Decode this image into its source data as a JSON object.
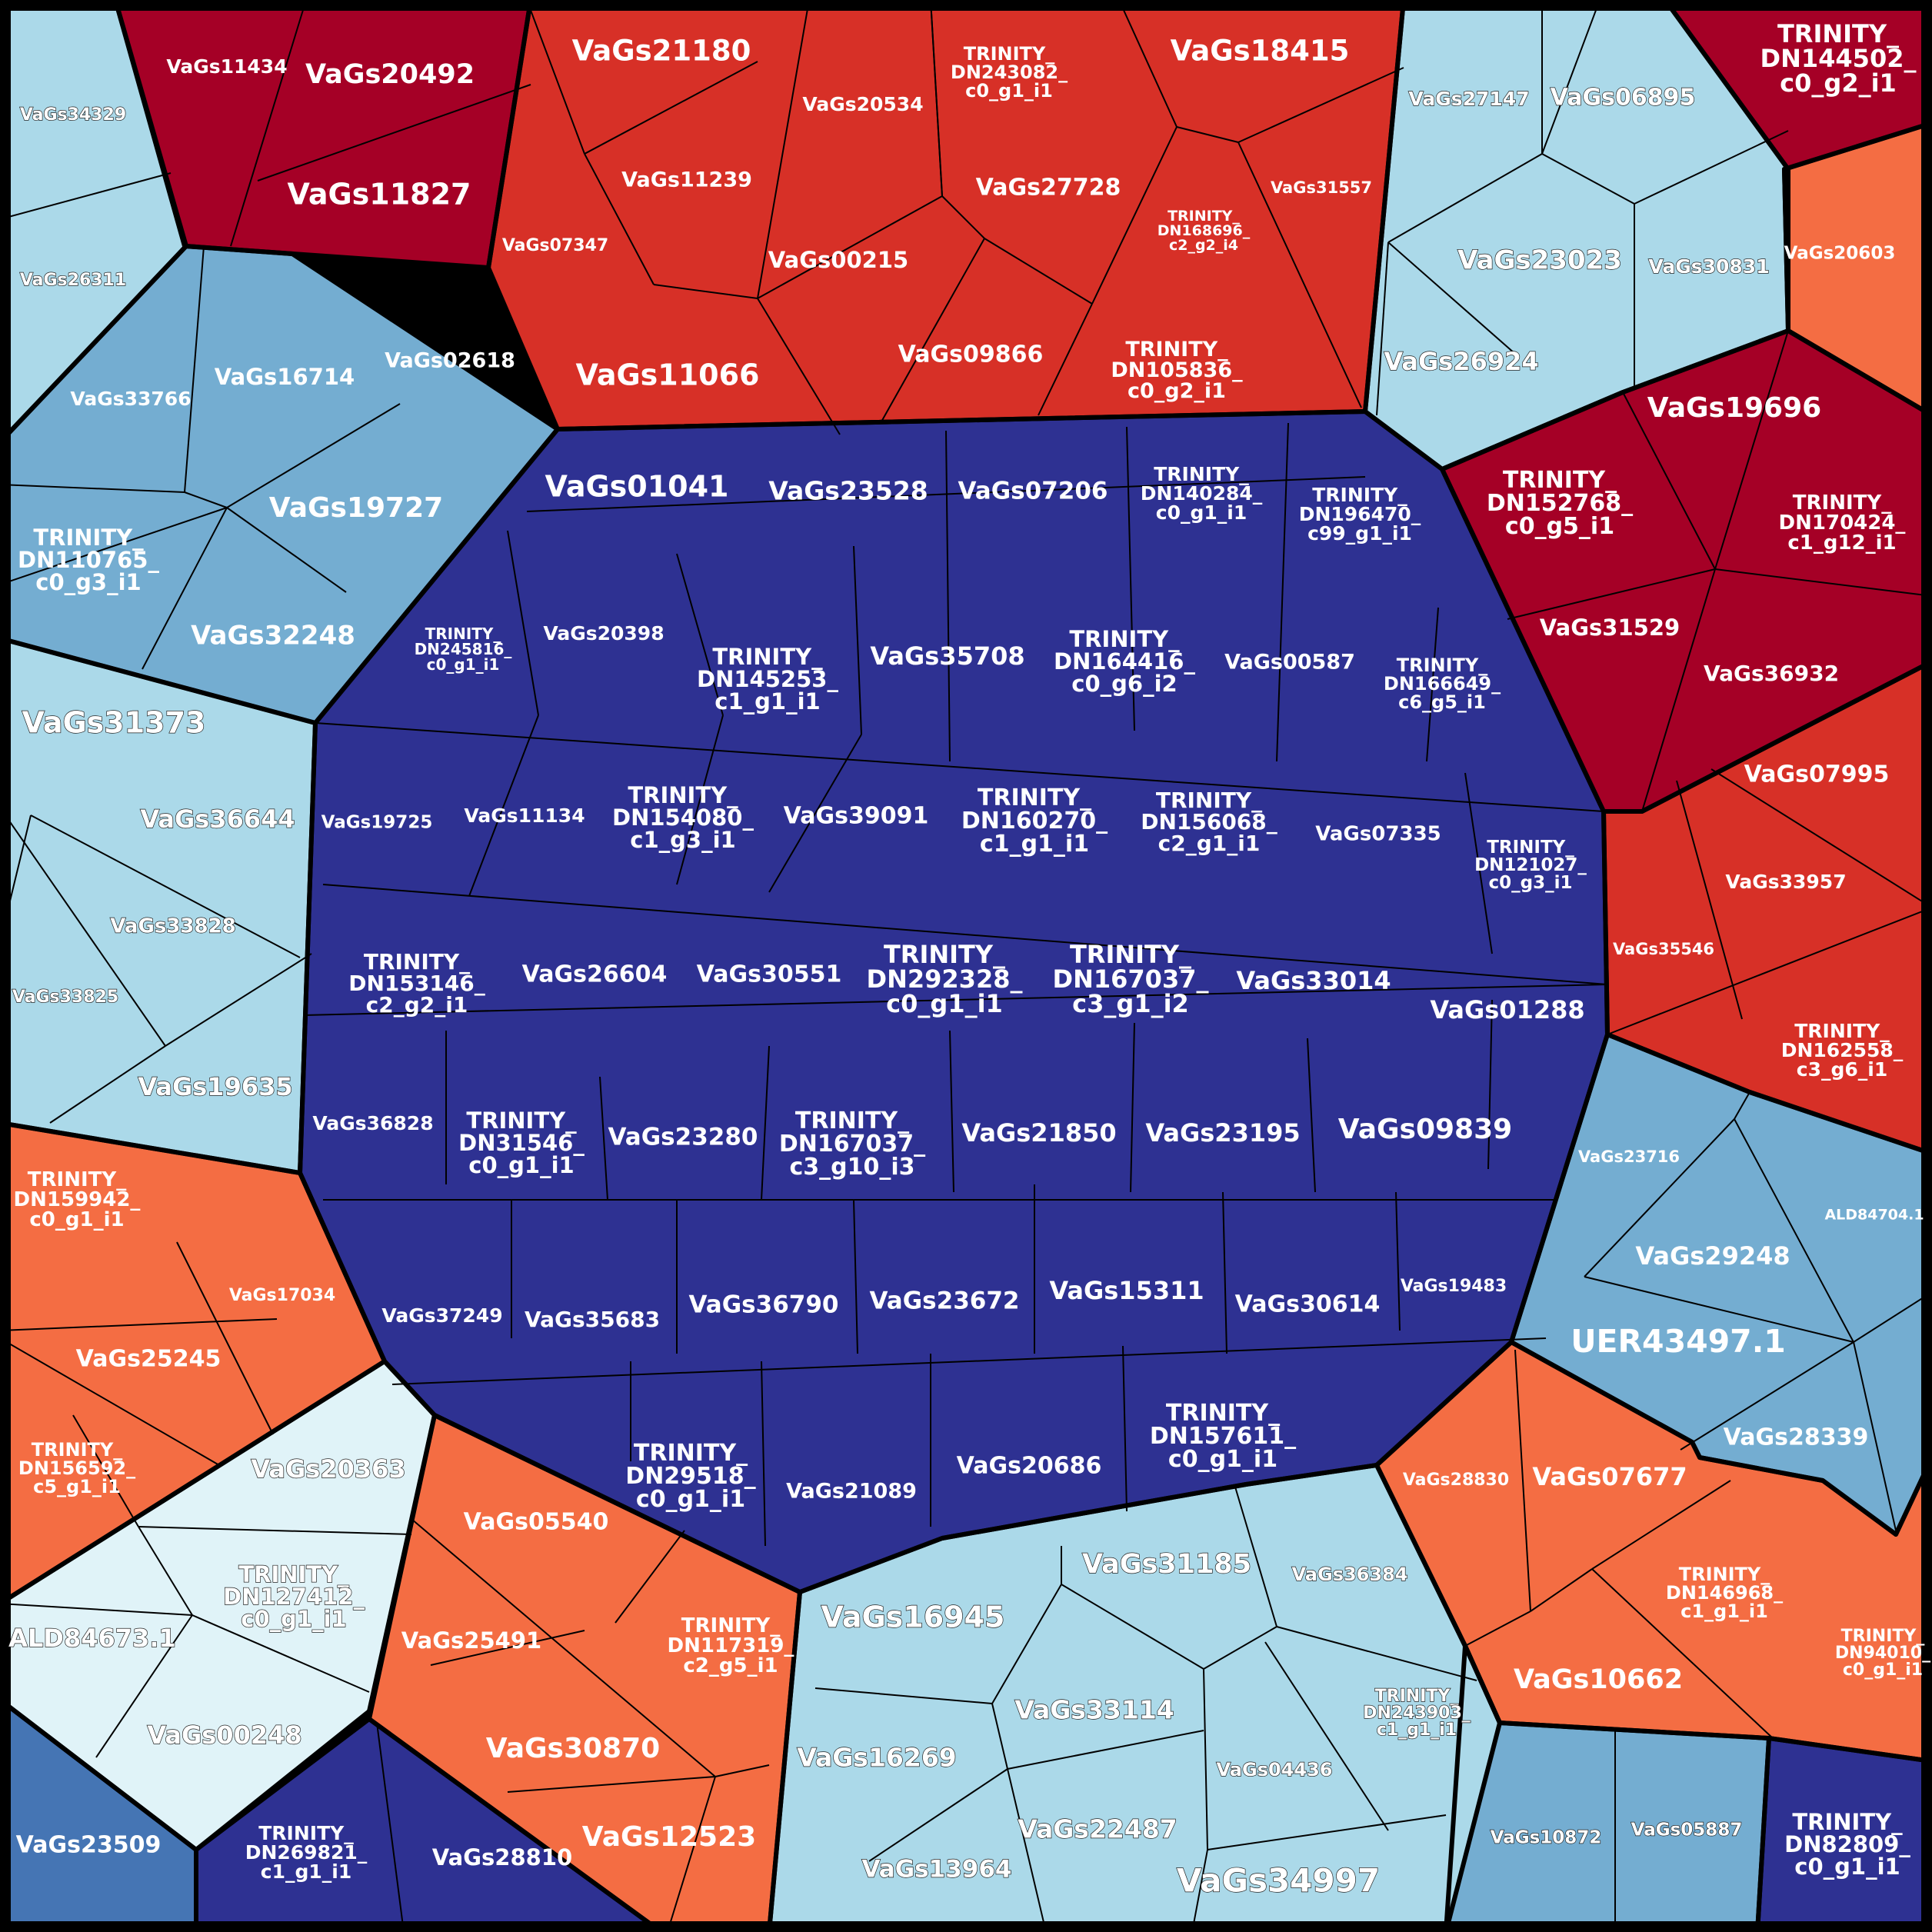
{
  "colors": {
    "center_navy": "#2e3192",
    "dark_red": "#a50026",
    "red": "#d73027",
    "orange": "#f46d43",
    "light_blue": "#abd9e9",
    "pale_blue": "#e0f3f8",
    "medium_blue": "#74add1",
    "steel_blue": "#4575b4"
  },
  "regions": {
    "center": [
      "VaGs01041",
      "VaGs23528",
      "VaGs07206",
      "TRINITY_ DN140284_ c0_g1_i1",
      "TRINITY_ DN196470_ c99_g1_i1",
      "TRINITY_ DN245816_ c0_g1_i1",
      "VaGs20398",
      "TRINITY_ DN145253_ c1_g1_i1",
      "VaGs35708",
      "TRINITY_ DN164416_ c0_g6_i2",
      "VaGs00587",
      "TRINITY_ DN166649_ c6_g5_i1",
      "VaGs19725",
      "VaGs11134",
      "TRINITY_ DN154080_ c1_g3_i1",
      "VaGs39091",
      "TRINITY_ DN160270_ c1_g1_i1",
      "TRINITY_ DN156068_ c2_g1_i1",
      "VaGs07335",
      "TRINITY_ DN121027_ c0_g3_i1",
      "TRINITY_ DN153146_ c2_g2_i1",
      "VaGs26604",
      "VaGs30551",
      "TRINITY_ DN292328_ c0_g1_i1",
      "TRINITY_ DN167037_ c3_g1_i2",
      "VaGs33014",
      "VaGs01288",
      "VaGs36828",
      "TRINITY_ DN31546_ c0_g1_i1",
      "VaGs23280",
      "TRINITY_ DN167037_ c3_g10_i3",
      "VaGs21850",
      "VaGs23195",
      "VaGs09839",
      "VaGs37249",
      "VaGs35683",
      "VaGs36790",
      "VaGs23672",
      "VaGs15311",
      "VaGs30614",
      "VaGs19483",
      "TRINITY_ DN29518_ c0_g1_i1",
      "VaGs21089",
      "VaGs20686",
      "TRINITY_ DN157611_ c0_g1_i1"
    ],
    "top_dark_red": [
      "VaGs11434",
      "VaGs20492",
      "VaGs11827"
    ],
    "top_red": [
      "VaGs21180",
      "VaGs20534",
      "TRINITY_ DN243082_ c0_g1_i1",
      "VaGs18415",
      "VaGs11239",
      "VaGs27728",
      "TRINITY_ DN168696_ c2_g2_i4",
      "VaGs31557",
      "VaGs07347",
      "VaGs00215",
      "VaGs11066",
      "VaGs09866",
      "TRINITY_ DN105836_ c0_g2_i1"
    ],
    "top_right_light": [
      "VaGs27147",
      "VaGs06895",
      "VaGs23023",
      "VaGs30831",
      "VaGs26924"
    ],
    "right_dark_red": [
      "TRINITY_ DN144502_ c0_g2_i1",
      "VaGs19696",
      "TRINITY_ DN152768_ c0_g5_i1",
      "TRINITY_ DN170424_ c1_g12_i1",
      "VaGs31529",
      "VaGs36932"
    ],
    "right_orange_single": [
      "VaGs20603"
    ],
    "right_red": [
      "VaGs07995",
      "VaGs33957",
      "VaGs35546",
      "TRINITY_ DN162558_ c3_g6_i1"
    ],
    "right_medium_blue": [
      "VaGs23716",
      "ALD84704.1",
      "VaGs29248",
      "UER43497.1",
      "VaGs28339"
    ],
    "bottom_right_orange": [
      "VaGs28830",
      "VaGs07677",
      "TRINITY_ DN146968_ c1_g1_i1",
      "VaGs10662",
      "TRINITY_ DN94010_ c0_g1_i1"
    ],
    "bottom_right_blue": [
      "VaGs10872",
      "VaGs05887"
    ],
    "bottom_right_navy": [
      "TRINITY_ DN82809_ c0_g1_i1"
    ],
    "bottom_light": [
      "VaGs31185",
      "VaGs36384",
      "VaGs16945",
      "VaGs33114",
      "TRINITY_ DN243903_ c1_g1_i1",
      "VaGs16269",
      "VaGs04436",
      "VaGs22487",
      "VaGs13964",
      "VaGs34997"
    ],
    "bottom_orange": [
      "VaGs05540",
      "TRINITY_ DN117319_ c2_g5_i1",
      "VaGs25491",
      "VaGs30870",
      "VaGs12523"
    ],
    "bottom_left_navy": [
      "TRINITY_ DN269821_ c1_g1_i1",
      "VaGs28810"
    ],
    "bottom_left_steel": [
      "VaGs23509"
    ],
    "bottom_left_pale": [
      "VaGs20363",
      "TRINITY_ DN127412_ c0_g1_i1",
      "ALD84673.1",
      "VaGs00248"
    ],
    "left_orange": [
      "TRINITY_ DN159942_ c0_g1_i1",
      "VaGs17034",
      "VaGs25245",
      "TRINITY_ DN156592_ c5_g1_i1"
    ],
    "left_light": [
      "VaGs31373",
      "VaGs36644",
      "VaGs33828",
      "VaGs33825",
      "VaGs19635"
    ],
    "left_medium_blue": [
      "VaGs16714",
      "VaGs02618",
      "VaGs33766",
      "VaGs19727",
      "TRINITY_ DN110765_ c0_g3_i1",
      "VaGs32248"
    ],
    "top_left_light": [
      "VaGs34329",
      "VaGs26311"
    ]
  }
}
